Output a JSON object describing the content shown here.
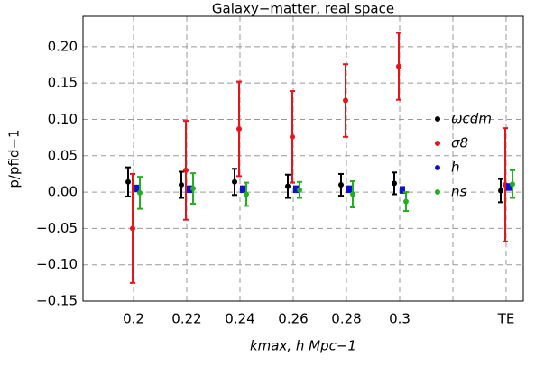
{
  "chart_data": {
    "type": "errorbar",
    "title": "Galaxy−matter, real space",
    "x_label": "kmax, h Mpc−1",
    "y_label": "p/pfid−1",
    "categories": [
      "0.2",
      "0.22",
      "0.24",
      "0.26",
      "0.28",
      "0.3",
      null,
      "TE"
    ],
    "ylim": [
      -0.15,
      0.242
    ],
    "yticks": [
      {
        "value": -0.15,
        "label": "−0.15"
      },
      {
        "value": -0.1,
        "label": "−0.10"
      },
      {
        "value": -0.05,
        "label": "−0.05"
      },
      {
        "value": 0,
        "label": "0.00"
      },
      {
        "value": 0.05,
        "label": "0.05"
      },
      {
        "value": 0.1,
        "label": "0.10"
      },
      {
        "value": 0.15,
        "label": "0.15"
      },
      {
        "value": 0.2,
        "label": "0.20"
      }
    ],
    "grid": true,
    "series": [
      {
        "name": "ωcdm",
        "color": "#000000",
        "values": [
          0.014,
          0.01,
          0.014,
          0.008,
          0.01,
          0.012,
          null,
          0.002
        ],
        "errors": [
          0.02,
          0.018,
          0.018,
          0.016,
          0.015,
          0.015,
          null,
          0.016
        ]
      },
      {
        "name": "σ8",
        "color": "#e8141c",
        "values": [
          -0.05,
          0.03,
          0.087,
          0.076,
          0.126,
          0.173,
          null,
          0.01
        ],
        "errors": [
          0.075,
          0.068,
          0.065,
          0.063,
          0.05,
          0.046,
          null,
          0.078
        ]
      },
      {
        "name": "h",
        "color": "#1010d0",
        "values": [
          0.005,
          0.004,
          0.004,
          0.004,
          0.004,
          0.003,
          null,
          0.007
        ],
        "errors": [
          0.004,
          0.004,
          0.004,
          0.004,
          0.004,
          0.004,
          null,
          0.004
        ]
      },
      {
        "name": "ns",
        "color": "#20b020",
        "values": [
          -0.001,
          0.005,
          -0.003,
          0.003,
          -0.003,
          -0.013,
          null,
          0.011
        ],
        "errors": [
          0.022,
          0.021,
          0.016,
          0.011,
          0.018,
          0.013,
          null,
          0.019
        ]
      }
    ]
  }
}
